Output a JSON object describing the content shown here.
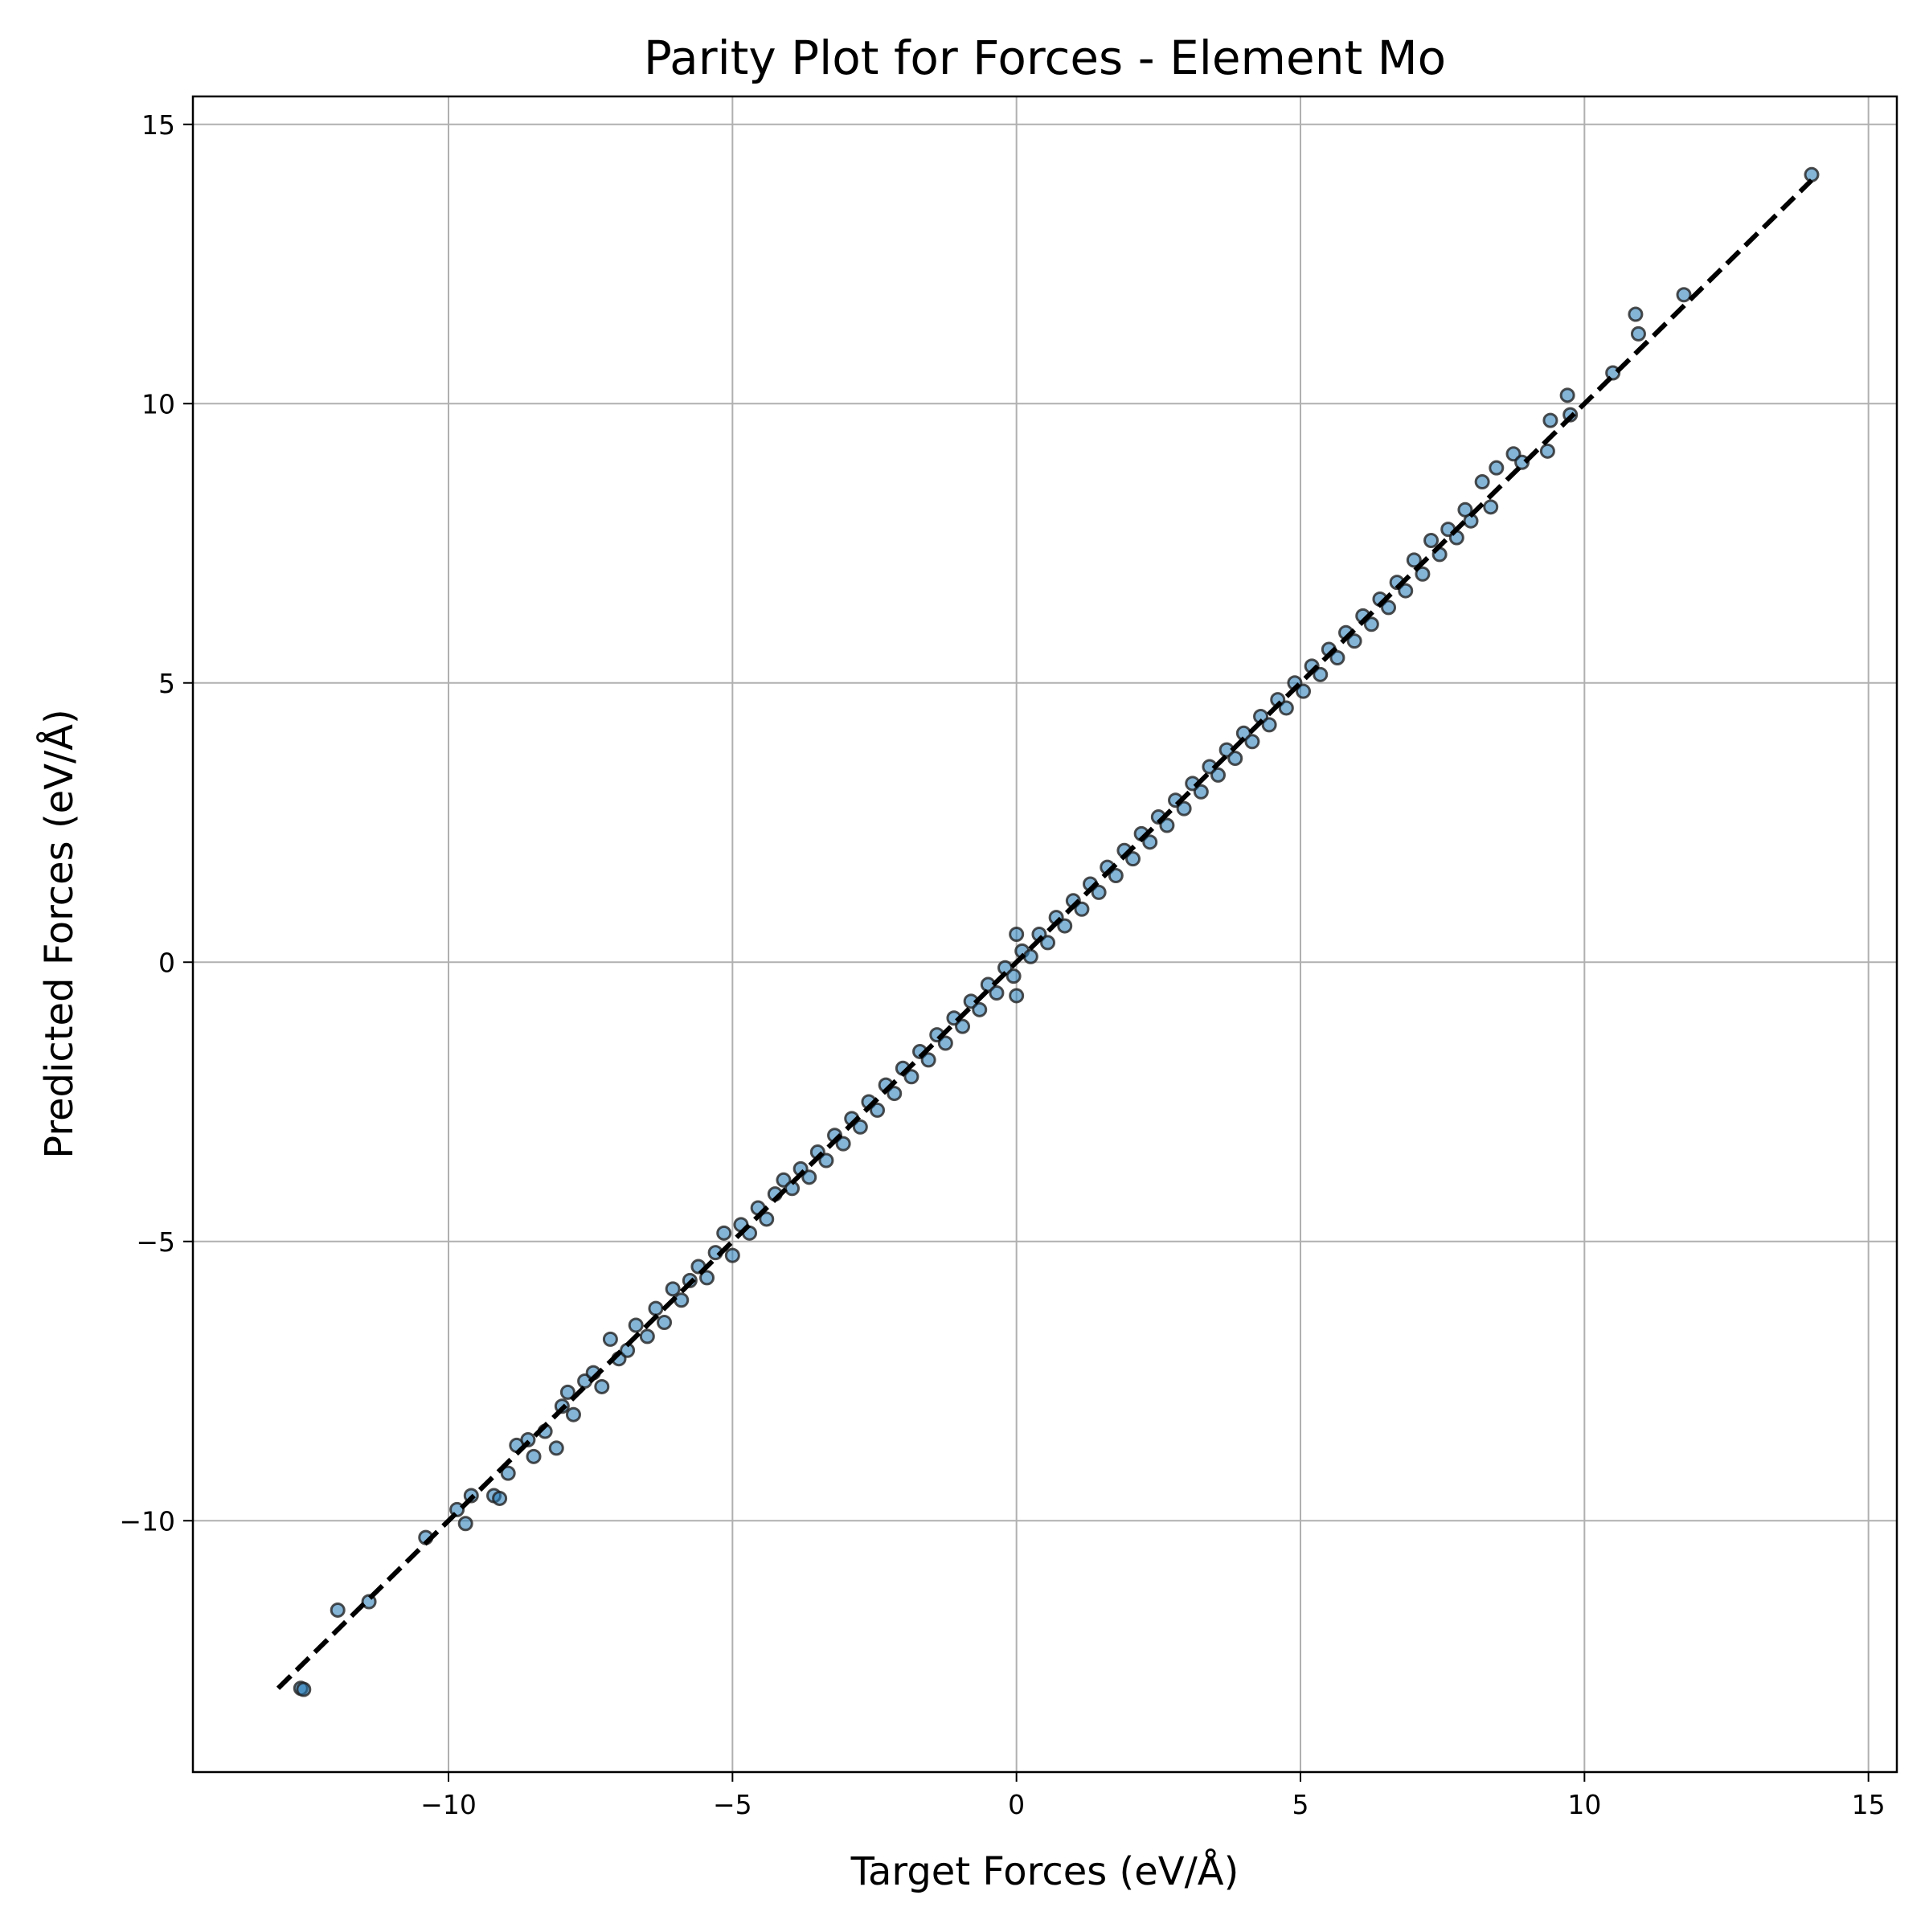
{
  "chart_data": {
    "type": "scatter",
    "title": "Parity Plot for Forces - Element Mo",
    "xlabel": "Target Forces (eV/Å)",
    "ylabel": "Predicted Forces (eV/Å)",
    "xlim": [
      -14.5,
      15.5
    ],
    "ylim": [
      -14.5,
      15.5
    ],
    "x_ticks": [
      -10,
      -5,
      0,
      5,
      10,
      15
    ],
    "y_ticks": [
      -10,
      -5,
      0,
      5,
      10,
      15
    ],
    "x_tick_labels": [
      "−10",
      "−5",
      "0",
      "5",
      "10",
      "15"
    ],
    "y_tick_labels": [
      "−10",
      "−5",
      "0",
      "5",
      "10",
      "15"
    ],
    "grid": true,
    "legend": "none",
    "parity_line": {
      "style": "dashed",
      "color": "#000000",
      "from": [
        -13.0,
        -13.0
      ],
      "to": [
        14.0,
        14.0
      ]
    },
    "series": [
      {
        "marker_fill": "#1f77b4",
        "marker_edge": "#222222",
        "points": [
          [
            -12.6,
            -13.0
          ],
          [
            -12.55,
            -13.02
          ],
          [
            -11.95,
            -11.6
          ],
          [
            -11.4,
            -11.45
          ],
          [
            -10.4,
            -10.3
          ],
          [
            -9.85,
            -9.8
          ],
          [
            -9.7,
            -10.05
          ],
          [
            -9.6,
            -9.55
          ],
          [
            -9.2,
            -9.55
          ],
          [
            -9.1,
            -9.6
          ],
          [
            -8.95,
            -9.15
          ],
          [
            -8.8,
            -8.65
          ],
          [
            -8.6,
            -8.55
          ],
          [
            -8.5,
            -8.85
          ],
          [
            -8.3,
            -8.4
          ],
          [
            -8.1,
            -8.7
          ],
          [
            -8.0,
            -7.95
          ],
          [
            -7.9,
            -7.7
          ],
          [
            -7.8,
            -8.1
          ],
          [
            -7.6,
            -7.5
          ],
          [
            -7.45,
            -7.35
          ],
          [
            -7.3,
            -7.6
          ],
          [
            -7.15,
            -6.75
          ],
          [
            -7.0,
            -7.1
          ],
          [
            -6.85,
            -6.95
          ],
          [
            -6.7,
            -6.5
          ],
          [
            -6.5,
            -6.7
          ],
          [
            -6.35,
            -6.2
          ],
          [
            -6.2,
            -6.45
          ],
          [
            -6.05,
            -5.85
          ],
          [
            -5.9,
            -6.05
          ],
          [
            -5.75,
            -5.7
          ],
          [
            -5.6,
            -5.45
          ],
          [
            -5.45,
            -5.65
          ],
          [
            -5.3,
            -5.2
          ],
          [
            -5.15,
            -4.85
          ],
          [
            -5.0,
            -5.25
          ],
          [
            -4.85,
            -4.7
          ],
          [
            -4.7,
            -4.85
          ],
          [
            -4.55,
            -4.4
          ],
          [
            -4.4,
            -4.6
          ],
          [
            -4.25,
            -4.15
          ],
          [
            -4.1,
            -3.9
          ],
          [
            -3.95,
            -4.05
          ],
          [
            -3.8,
            -3.7
          ],
          [
            -3.65,
            -3.85
          ],
          [
            -3.5,
            -3.4
          ],
          [
            -3.35,
            -3.55
          ],
          [
            -3.2,
            -3.1
          ],
          [
            -3.05,
            -3.25
          ],
          [
            -2.9,
            -2.8
          ],
          [
            -2.75,
            -2.95
          ],
          [
            -2.6,
            -2.5
          ],
          [
            -2.45,
            -2.65
          ],
          [
            -2.3,
            -2.2
          ],
          [
            -2.15,
            -2.35
          ],
          [
            -2.0,
            -1.9
          ],
          [
            -1.85,
            -2.05
          ],
          [
            -1.7,
            -1.6
          ],
          [
            -1.55,
            -1.75
          ],
          [
            -1.4,
            -1.3
          ],
          [
            -1.25,
            -1.45
          ],
          [
            -1.1,
            -1.0
          ],
          [
            -0.95,
            -1.15
          ],
          [
            -0.8,
            -0.7
          ],
          [
            -0.65,
            -0.85
          ],
          [
            -0.5,
            -0.4
          ],
          [
            -0.35,
            -0.55
          ],
          [
            -0.2,
            -0.1
          ],
          [
            -0.05,
            -0.25
          ],
          [
            0.0,
            0.5
          ],
          [
            0.0,
            -0.6
          ],
          [
            0.1,
            0.2
          ],
          [
            0.25,
            0.1
          ],
          [
            0.4,
            0.5
          ],
          [
            0.55,
            0.35
          ],
          [
            0.7,
            0.8
          ],
          [
            0.85,
            0.65
          ],
          [
            1.0,
            1.1
          ],
          [
            1.15,
            0.95
          ],
          [
            1.3,
            1.4
          ],
          [
            1.45,
            1.25
          ],
          [
            1.6,
            1.7
          ],
          [
            1.75,
            1.55
          ],
          [
            1.9,
            2.0
          ],
          [
            2.05,
            1.85
          ],
          [
            2.2,
            2.3
          ],
          [
            2.35,
            2.15
          ],
          [
            2.5,
            2.6
          ],
          [
            2.65,
            2.45
          ],
          [
            2.8,
            2.9
          ],
          [
            2.95,
            2.75
          ],
          [
            3.1,
            3.2
          ],
          [
            3.25,
            3.05
          ],
          [
            3.4,
            3.5
          ],
          [
            3.55,
            3.35
          ],
          [
            3.7,
            3.8
          ],
          [
            3.85,
            3.65
          ],
          [
            4.0,
            4.1
          ],
          [
            4.15,
            3.95
          ],
          [
            4.3,
            4.4
          ],
          [
            4.45,
            4.25
          ],
          [
            4.6,
            4.7
          ],
          [
            4.75,
            4.55
          ],
          [
            4.9,
            5.0
          ],
          [
            5.05,
            4.85
          ],
          [
            5.2,
            5.3
          ],
          [
            5.35,
            5.15
          ],
          [
            5.5,
            5.6
          ],
          [
            5.65,
            5.45
          ],
          [
            5.8,
            5.9
          ],
          [
            5.95,
            5.75
          ],
          [
            6.1,
            6.2
          ],
          [
            6.25,
            6.05
          ],
          [
            6.4,
            6.5
          ],
          [
            6.55,
            6.35
          ],
          [
            6.7,
            6.8
          ],
          [
            6.85,
            6.65
          ],
          [
            7.0,
            7.2
          ],
          [
            7.15,
            6.95
          ],
          [
            7.3,
            7.55
          ],
          [
            7.45,
            7.3
          ],
          [
            7.6,
            7.75
          ],
          [
            7.75,
            7.6
          ],
          [
            7.9,
            8.1
          ],
          [
            8.0,
            7.9
          ],
          [
            8.2,
            8.6
          ],
          [
            8.35,
            8.15
          ],
          [
            8.45,
            8.85
          ],
          [
            8.75,
            9.1
          ],
          [
            8.9,
            8.95
          ],
          [
            9.35,
            9.15
          ],
          [
            9.4,
            9.7
          ],
          [
            9.7,
            10.15
          ],
          [
            9.75,
            9.8
          ],
          [
            10.5,
            10.55
          ],
          [
            10.9,
            11.6
          ],
          [
            10.95,
            11.25
          ],
          [
            11.75,
            11.95
          ],
          [
            14.0,
            14.1
          ]
        ]
      }
    ]
  }
}
